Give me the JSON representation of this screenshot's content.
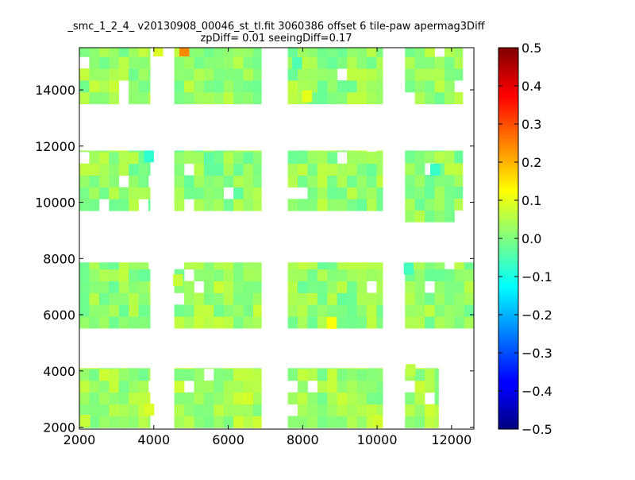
{
  "chart_data": {
    "type": "heatmap",
    "title": "_smc_1_2_4_ v20130908_00046_st_tl.fit 3060386 offset 6 tile-paw apermag3Diff",
    "subtitle": "zpDiff= 0.01 seeingDiff=0.17",
    "xlim": [
      2000,
      12600
    ],
    "ylim": [
      1930,
      15500
    ],
    "xticks": [
      "2000",
      "4000",
      "6000",
      "8000",
      "10000",
      "12000"
    ],
    "yticks": [
      "2000",
      "4000",
      "6000",
      "8000",
      "10000",
      "12000",
      "14000"
    ],
    "colorbar": {
      "range": [
        -0.5,
        0.5
      ],
      "colormap": "jet",
      "ticks": [
        "0.5",
        "0.4",
        "0.3",
        "0.2",
        "0.1",
        "0.0",
        "−0.1",
        "−0.2",
        "−0.3",
        "−0.4",
        "−0.5"
      ]
    },
    "cell_size": [
      265,
      420
    ],
    "grid": false,
    "blocks": [
      {
        "x": [
          2000,
          3900
        ],
        "y": [
          1980,
          4100
        ],
        "base": 0.03
      },
      {
        "x": [
          4550,
          6890
        ],
        "y": [
          1980,
          4100
        ],
        "base": 0.04
      },
      {
        "x": [
          7600,
          10150
        ],
        "y": [
          1980,
          4100
        ],
        "base": 0.03
      },
      {
        "x": [
          10750,
          11650
        ],
        "y": [
          1980,
          4100
        ],
        "base": 0.04
      },
      {
        "x": [
          2000,
          3900
        ],
        "y": [
          5520,
          7860
        ],
        "base": 0.02
      },
      {
        "x": [
          4550,
          6890
        ],
        "y": [
          5520,
          7860
        ],
        "base": 0.03
      },
      {
        "x": [
          7600,
          10150
        ],
        "y": [
          5520,
          7860
        ],
        "base": 0.02
      },
      {
        "x": [
          10750,
          12600
        ],
        "y": [
          5520,
          7860
        ],
        "base": 0.02
      },
      {
        "x": [
          2000,
          3900
        ],
        "y": [
          9700,
          11840
        ],
        "base": 0.02
      },
      {
        "x": [
          4550,
          6890
        ],
        "y": [
          9700,
          11840
        ],
        "base": 0.01
      },
      {
        "x": [
          7600,
          10150
        ],
        "y": [
          9700,
          11840
        ],
        "base": 0.02
      },
      {
        "x": [
          10750,
          12300
        ],
        "y": [
          9300,
          11840
        ],
        "base": 0.02
      },
      {
        "x": [
          2000,
          3900
        ],
        "y": [
          13500,
          15500
        ],
        "base": 0.03
      },
      {
        "x": [
          4550,
          6890
        ],
        "y": [
          13500,
          15500
        ],
        "base": 0.02
      },
      {
        "x": [
          7600,
          10150
        ],
        "y": [
          13500,
          15500
        ],
        "base": 0.02
      },
      {
        "x": [
          10750,
          12300
        ],
        "y": [
          13500,
          15500
        ],
        "base": 0.02
      }
    ],
    "highlights": [
      {
        "x": 4820,
        "y": 15400,
        "value": 0.24
      },
      {
        "x": 4120,
        "y": 15400,
        "value": 0.09
      },
      {
        "x": 3870,
        "y": 11630,
        "value": -0.08
      },
      {
        "x": 11560,
        "y": 11160,
        "value": -0.07
      },
      {
        "x": 8780,
        "y": 5710,
        "value": 0.12
      },
      {
        "x": 8120,
        "y": 13770,
        "value": 0.1
      },
      {
        "x": 2160,
        "y": 2230,
        "value": 0.07
      },
      {
        "x": 3880,
        "y": 2620,
        "value": 0.09
      },
      {
        "x": 10000,
        "y": 2230,
        "value": 0.08
      },
      {
        "x": 7850,
        "y": 14950,
        "value": -0.05
      },
      {
        "x": 10850,
        "y": 7640,
        "value": -0.06
      },
      {
        "x": 4650,
        "y": 7230,
        "value": 0.07
      },
      {
        "x": 10900,
        "y": 4030,
        "value": 0.06
      }
    ]
  }
}
